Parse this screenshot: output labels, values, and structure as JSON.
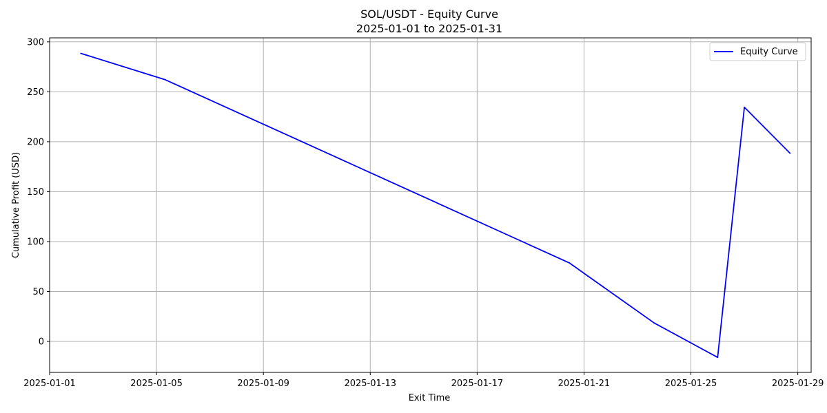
{
  "chart_data": {
    "type": "line",
    "title": "SOL/USDT - Equity Curve",
    "subtitle": "2025-01-01 to 2025-01-31",
    "xlabel": "Exit Time",
    "ylabel": "Cumulative Profit (USD)",
    "x_type": "date",
    "xlim": [
      "2025-01-01T00:00",
      "2025-01-29T12:00"
    ],
    "ylim": [
      -31,
      304
    ],
    "x_ticks": [
      "2025-01-01",
      "2025-01-05",
      "2025-01-09",
      "2025-01-13",
      "2025-01-17",
      "2025-01-21",
      "2025-01-25",
      "2025-01-29"
    ],
    "y_ticks": [
      0,
      50,
      100,
      150,
      200,
      250,
      300
    ],
    "grid": true,
    "legend": "top-right",
    "series": [
      {
        "name": "Equity Curve",
        "color": "#0000ff",
        "x": [
          "2025-01-02T04:00",
          "2025-01-05T08:00",
          "2025-01-20T11:00",
          "2025-01-23T15:00",
          "2025-01-26T00:00",
          "2025-01-27T00:00",
          "2025-01-28T17:00"
        ],
        "y": [
          288.5,
          262,
          78.5,
          18.5,
          -16,
          234.5,
          188.5
        ]
      }
    ]
  }
}
